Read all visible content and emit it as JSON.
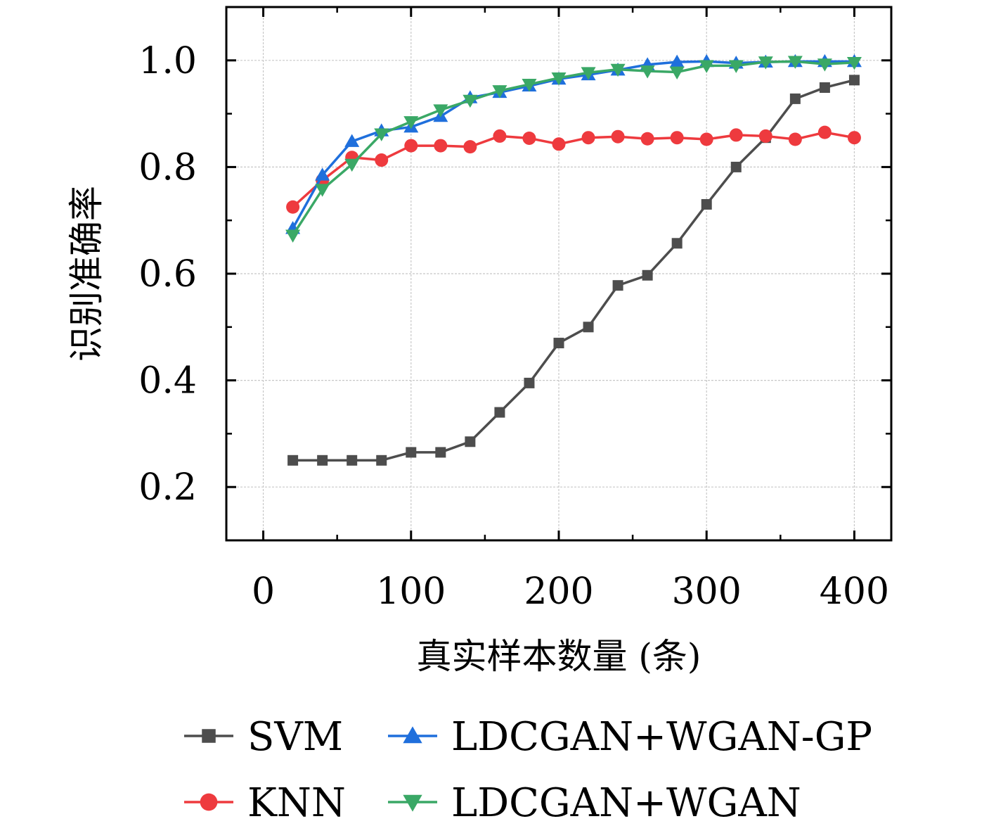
{
  "chart_data": {
    "type": "line",
    "xlabel": "真实样本数量 (条)",
    "ylabel": "识别准确率",
    "xlim": [
      -25,
      425
    ],
    "ylim": [
      0.1,
      1.1
    ],
    "xticks": [
      0,
      100,
      200,
      300,
      400
    ],
    "yticks": [
      0.2,
      0.4,
      0.6,
      0.8,
      1.0
    ],
    "xtick_labels": [
      "0",
      "100",
      "200",
      "300",
      "400"
    ],
    "ytick_labels": [
      "0.2",
      "0.4",
      "0.6",
      "0.8",
      "1.0"
    ],
    "grid": true,
    "legend_position": "bottom",
    "x": [
      20,
      40,
      60,
      80,
      100,
      120,
      140,
      160,
      180,
      200,
      220,
      240,
      260,
      280,
      300,
      320,
      340,
      360,
      380,
      400
    ],
    "series": [
      {
        "name": "SVM",
        "color": "#4d4d4d",
        "marker": "square",
        "values": [
          0.25,
          0.25,
          0.25,
          0.25,
          0.265,
          0.265,
          0.285,
          0.34,
          0.395,
          0.47,
          0.5,
          0.578,
          0.597,
          0.657,
          0.73,
          0.8,
          0.855,
          0.928,
          0.949,
          0.963
        ]
      },
      {
        "name": "KNN",
        "color": "#ee3a3e",
        "marker": "circle",
        "values": [
          0.725,
          0.775,
          0.818,
          0.813,
          0.84,
          0.84,
          0.838,
          0.858,
          0.854,
          0.843,
          0.855,
          0.857,
          0.853,
          0.855,
          0.852,
          0.86,
          0.858,
          0.852,
          0.865,
          0.855
        ]
      },
      {
        "name": "LDCGAN+WGAN-GP",
        "color": "#1f6fdc",
        "marker": "triangle-up",
        "values": [
          0.685,
          0.785,
          0.848,
          0.868,
          0.875,
          0.895,
          0.93,
          0.94,
          0.952,
          0.965,
          0.973,
          0.982,
          0.992,
          0.997,
          0.998,
          0.995,
          0.997,
          0.998,
          0.998,
          0.998
        ]
      },
      {
        "name": "LDCGAN+WGAN",
        "color": "#3aa866",
        "marker": "triangle-down",
        "values": [
          0.672,
          0.758,
          0.805,
          0.862,
          0.885,
          0.907,
          0.925,
          0.943,
          0.955,
          0.967,
          0.977,
          0.983,
          0.98,
          0.978,
          0.99,
          0.99,
          0.997,
          0.998,
          0.993,
          0.996
        ]
      }
    ]
  }
}
